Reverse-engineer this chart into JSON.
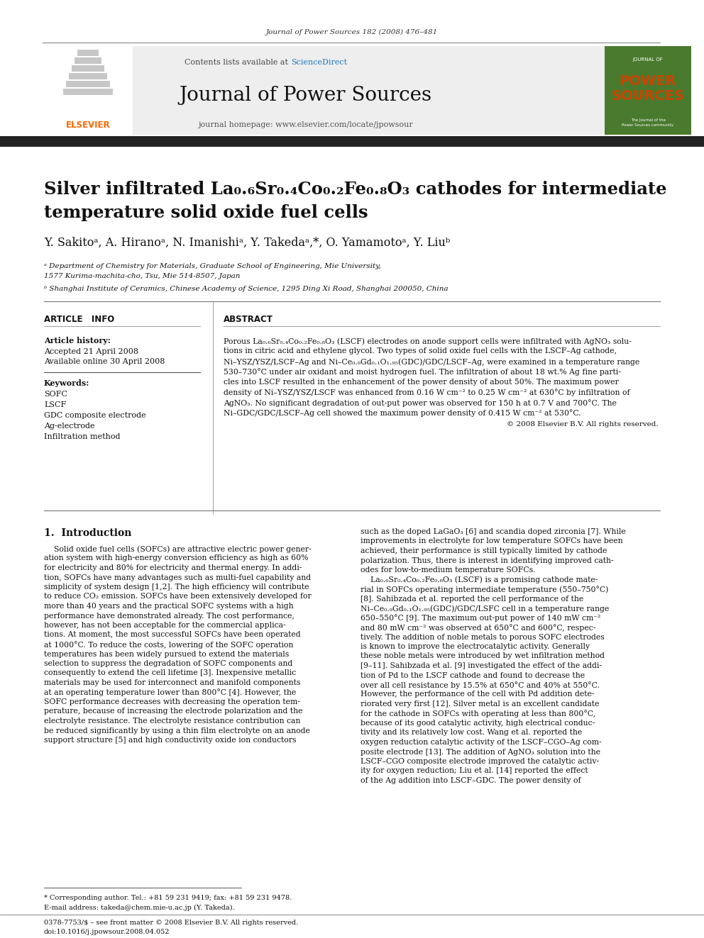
{
  "journal_cite": "Journal of Power Sources 182 (2008) 476–481",
  "contents_text": "Contents lists available at ",
  "sciencedirect_text": "ScienceDirect",
  "journal_name": "Journal of Power Sources",
  "journal_homepage": "journal homepage: www.elsevier.com/locate/jpowsour",
  "title_line1": "Silver infiltrated La₀.₆Sr₀.₄Co₀.₂Fe₀.₈O₃ cathodes for intermediate",
  "title_line2": "temperature solid oxide fuel cells",
  "authors": "Y. Sakitoᵃ, A. Hiranoᵃ, N. Imanishiᵃ, Y. Takedaᵃ,*, O. Yamamotoᵃ, Y. Liuᵇ",
  "affil_a": "ᵃ Department of Chemistry for Materials, Graduate School of Engineering, Mie University,",
  "affil_a2": "1577 Kurima-machita-cho, Tsu, Mie 514-8507, Japan",
  "affil_b": "ᵇ Shanghai Institute of Ceramics, Chinese Academy of Science, 1295 Ding Xi Road, Shanghai 200050, China",
  "article_info_header": "ARTICLE   INFO",
  "abstract_header": "ABSTRACT",
  "article_history": "Article history:",
  "accepted": "Accepted 21 April 2008",
  "available": "Available online 30 April 2008",
  "keywords_header": "Keywords:",
  "keywords": [
    "SOFC",
    "LSCF",
    "GDC composite electrode",
    "Ag-electrode",
    "Infiltration method"
  ],
  "abstract_line1": "Porous La₀.₆Sr₀.₄Co₀.₂Fe₀.₈O₃ (LSCF) electrodes on anode support cells were infiltrated with AgNO₃ solu-",
  "abstract_line2": "tions in citric acid and ethylene glycol. Two types of solid oxide fuel cells with the LSCF–Ag cathode,",
  "abstract_line3": "Ni–YSZ/YSZ/LSCF–Ag and Ni–Ce₀.₉Gd₀.₁O₁.₉₅(GDC)/GDC/LSCF–Ag, were examined in a temperature range",
  "abstract_line4": "530–730°C under air oxidant and moist hydrogen fuel. The infiltration of about 18 wt.% Ag fine parti-",
  "abstract_line5": "cles into LSCF resulted in the enhancement of the power density of about 50%. The maximum power",
  "abstract_line6": "density of Ni–YSZ/YSZ/LSCF was enhanced from 0.16 W cm⁻² to 0.25 W cm⁻² at 630°C by infiltration of",
  "abstract_line7": "AgNO₃. No significant degradation of out-put power was observed for 150 h at 0.7 V and 700°C. The",
  "abstract_line8": "Ni–GDC/GDC/LSCF–Ag cell showed the maximum power density of 0.415 W cm⁻² at 530°C.",
  "copyright": "© 2008 Elsevier B.V. All rights reserved.",
  "intro_header": "1.  Introduction",
  "intro_col1_lines": [
    "    Solid oxide fuel cells (SOFCs) are attractive electric power gener-",
    "ation system with high-energy conversion efficiency as high as 60%",
    "for electricity and 80% for electricity and thermal energy. In addi-",
    "tion, SOFCs have many advantages such as multi-fuel capability and",
    "simplicity of system design [1,2]. The high efficiency will contribute",
    "to reduce CO₂ emission. SOFCs have been extensively developed for",
    "more than 40 years and the practical SOFC systems with a high",
    "performance have demonstrated already. The cost performance,",
    "however, has not been acceptable for the commercial applica-",
    "tions. At moment, the most successful SOFCs have been operated",
    "at 1000°C. To reduce the costs, lowering of the SOFC operation",
    "temperatures has been widely pursued to extend the materials",
    "selection to suppress the degradation of SOFC components and",
    "consequently to extend the cell lifetime [3]. Inexpensive metallic",
    "materials may be used for interconnect and manifold components",
    "at an operating temperature lower than 800°C [4]. However, the",
    "SOFC performance decreases with decreasing the operation tem-",
    "perature, because of increasing the electrode polarization and the",
    "electrolyte resistance. The electrolyte resistance contribution can",
    "be reduced significantly by using a thin film electrolyte on an anode",
    "support structure [5] and high conductivity oxide ion conductors"
  ],
  "intro_col2_lines": [
    "such as the doped LaGaO₃ [6] and scandia doped zirconia [7]. While",
    "improvements in electrolyte for low temperature SOFCs have been",
    "achieved, their performance is still typically limited by cathode",
    "polarization. Thus, there is interest in identifying improved cath-",
    "odes for low-to-medium temperature SOFCs.",
    "    La₀.₆Sr₀.₄Co₀.₂Fe₀.₈O₃ (LSCF) is a promising cathode mate-",
    "rial in SOFCs operating intermediate temperature (550–750°C)",
    "[8]. Sahibzada et al. reported the cell performance of the",
    "Ni–Ce₀.₉Gd₀.₁O₁.₉₅(GDC)/GDC/LSFC cell in a temperature range",
    "650–550°C [9]. The maximum out-put power of 140 mW cm⁻²",
    "and 80 mW cm⁻² was observed at 650°C and 600°C, respec-",
    "tively. The addition of noble metals to porous SOFC electrodes",
    "is known to improve the electrocatalytic activity. Generally",
    "these noble metals were introduced by wet infiltration method",
    "[9–11]. Sahibzada et al. [9] investigated the effect of the addi-",
    "tion of Pd to the LSCF cathode and found to decrease the",
    "over all cell resistance by 15.5% at 650°C and 40% at 550°C.",
    "However, the performance of the cell with Pd addition dete-",
    "riorated very first [12]. Silver metal is an excellent candidate",
    "for the cathode in SOFCs with operating at less than 800°C,",
    "because of its good catalytic activity, high electrical conduc-",
    "tivity and its relatively low cost. Wang et al. reported the",
    "oxygen reduction catalytic activity of the LSCF–CGO–Ag com-",
    "posite electrode [13]. The addition of AgNO₃ solution into the",
    "LSCF–CGO composite electrode improved the catalytic activ-",
    "ity for oxygen reduction; Liu et al. [14] reported the effect",
    "of the Ag addition into LSCF–GDC. The power density of"
  ],
  "footnote1": "* Corresponding author. Tel.: +81 59 231 9419; fax: +81 59 231 9478.",
  "footnote2": "E-mail address: takeda@chem.mie-u.ac.jp (Y. Takeda).",
  "footer1": "0378-7753/$ – see front matter © 2008 Elsevier B.V. All rights reserved.",
  "footer2": "doi:10.1016/j.jpowsour.2008.04.052",
  "bg_color": "#ffffff",
  "elsevier_orange": "#FF6600",
  "sciencedirect_blue": "#1e78c2",
  "cover_green": "#4a7a2e",
  "cover_orange": "#cc4400",
  "dark_bar": "#222222",
  "rule_color": "#777777",
  "text_color": "#111111"
}
